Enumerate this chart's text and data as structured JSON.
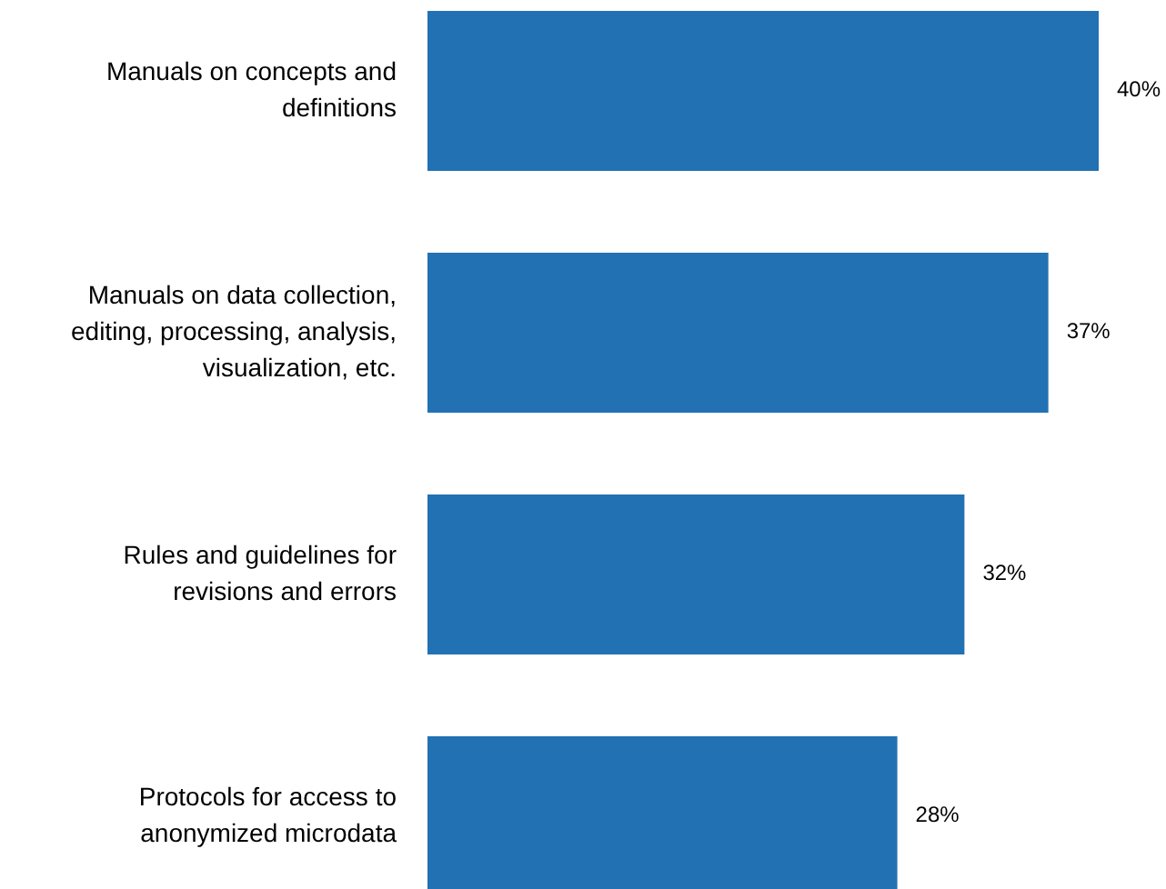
{
  "chart_data": {
    "type": "bar",
    "orientation": "horizontal",
    "categories": [
      "Manuals on concepts and definitions",
      "Manuals on data collection, editing, processing, analysis, visualization, etc.",
      "Rules and guidelines for revisions and errors",
      "Protocols for access to anonymized microdata"
    ],
    "values": [
      40,
      37,
      32,
      28
    ],
    "color": "#2271b3",
    "value_labels": [
      "40%",
      "37%",
      "32%",
      "28%"
    ]
  }
}
